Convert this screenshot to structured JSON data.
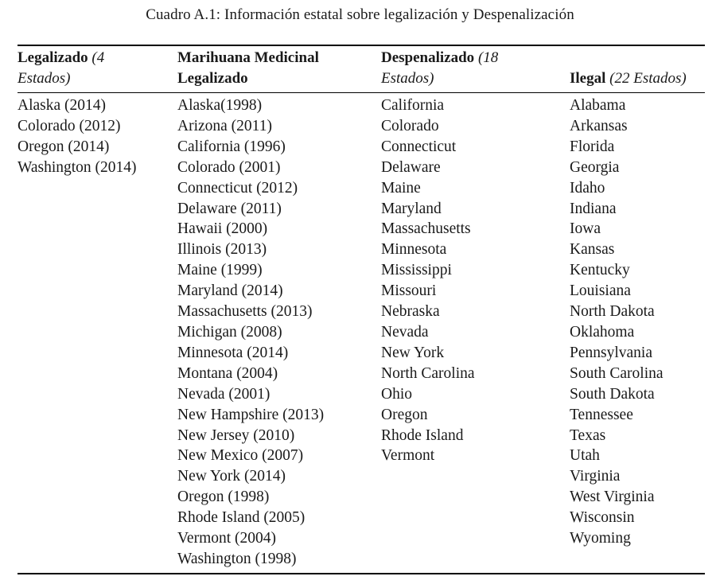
{
  "caption": "Cuadro A.1: Información estatal sobre legalización y Despenalización",
  "headers": {
    "legalized": {
      "bold": "Legalizado",
      "italic_a": " (4",
      "italic_b": "Estados)"
    },
    "medical": {
      "line1": "Marihuana Medicinal",
      "line2": "Legalizado"
    },
    "decriminalized": {
      "bold": "Despenalizado",
      "italic_a": " (18",
      "italic_b": "Estados)"
    },
    "illegal": {
      "bold": "Ilegal",
      "italic": " (22 Estados)"
    }
  },
  "columns": {
    "legalized": [
      "Alaska (2014)",
      "Colorado (2012)",
      "Oregon (2014)",
      "Washington (2014)"
    ],
    "medical": [
      "Alaska(1998)",
      "Arizona (2011)",
      "California (1996)",
      "Colorado (2001)",
      "Connecticut (2012)",
      "Delaware (2011)",
      "Hawaii (2000)",
      "Illinois (2013)",
      "Maine (1999)",
      "Maryland (2014)",
      "Massachusetts (2013)",
      "Michigan (2008)",
      "Minnesota (2014)",
      "Montana (2004)",
      "Nevada (2001)",
      "New Hampshire (2013)",
      "New Jersey (2010)",
      "New Mexico (2007)",
      "New York (2014)",
      "Oregon (1998)",
      "Rhode Island (2005)",
      "Vermont (2004)",
      "Washington (1998)"
    ],
    "decriminalized": [
      "California",
      "Colorado",
      "Connecticut",
      "Delaware",
      "Maine",
      "Maryland",
      "Massachusetts",
      "Minnesota",
      "Mississippi",
      "Missouri",
      "Nebraska",
      "Nevada",
      "New York",
      "North Carolina",
      "Ohio",
      "Oregon",
      "Rhode Island",
      "Vermont"
    ],
    "illegal": [
      "Alabama",
      "Arkansas",
      "Florida",
      "Georgia",
      "Idaho",
      "Indiana",
      "Iowa",
      "Kansas",
      "Kentucky",
      "Louisiana",
      "North Dakota",
      "Oklahoma",
      "Pennsylvania",
      "South Carolina",
      "South Dakota",
      "Tennessee",
      "Texas",
      "Utah",
      "Virginia",
      "West Virginia",
      "Wisconsin",
      "Wyoming"
    ]
  }
}
